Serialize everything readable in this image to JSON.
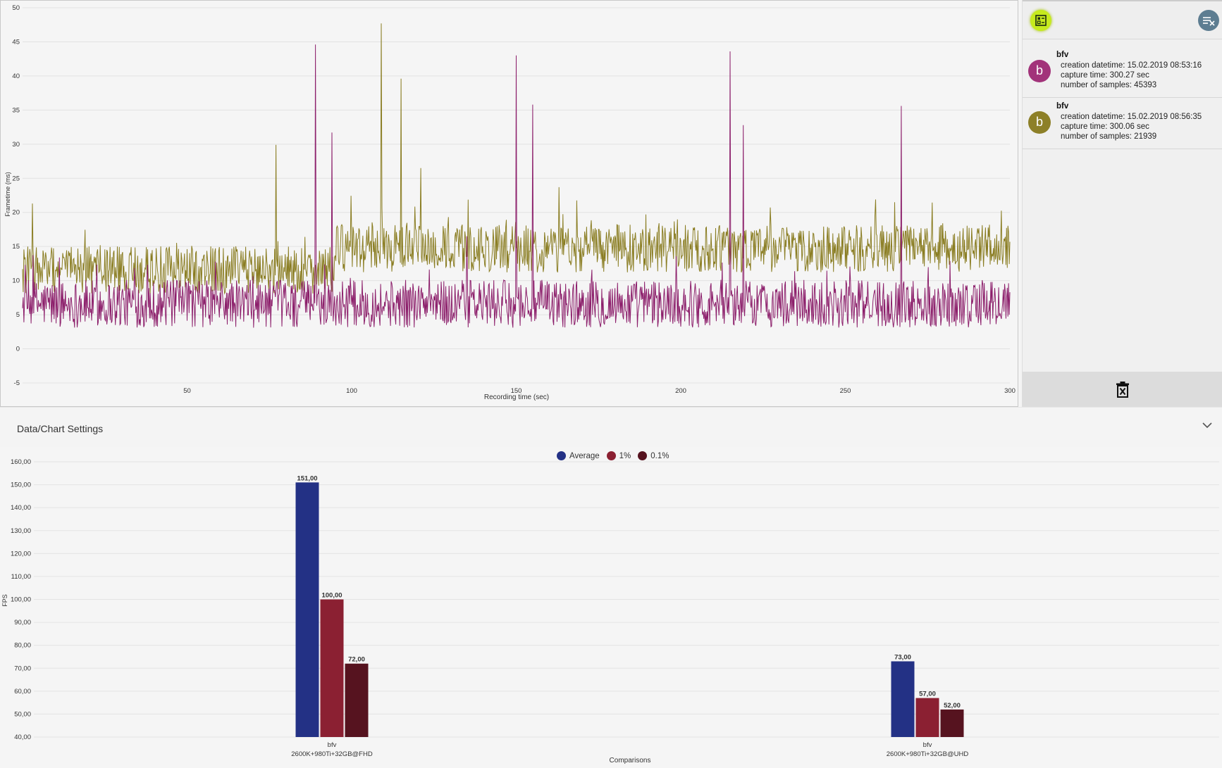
{
  "frametime_chart": {
    "xlabel": "Recording time (sec)",
    "ylabel": "Frametime (ms)",
    "x_ticks": [
      "50",
      "100",
      "150",
      "200",
      "250",
      "300"
    ],
    "y_ticks": [
      "50",
      "45",
      "40",
      "35",
      "30",
      "25",
      "20",
      "15",
      "10",
      "5",
      "0",
      "-5"
    ]
  },
  "records": [
    {
      "initial": "b",
      "name": "bfv",
      "created": "creation datetime: 15.02.2019 08:53:16",
      "capture": "capture time: 300.27 sec",
      "samples": "number of samples: 45393",
      "color": "#a0326f"
    },
    {
      "initial": "b",
      "name": "bfv",
      "created": "creation datetime: 15.02.2019 08:56:35",
      "capture": "capture time: 300.06 sec",
      "samples": "number of samples: 21939",
      "color": "#877a1a"
    }
  ],
  "settings": {
    "title": "Data/Chart Settings"
  },
  "legend": [
    {
      "label": "Average",
      "color": "#233185"
    },
    {
      "label": "1%",
      "color": "#8b2032"
    },
    {
      "label": "0.1%",
      "color": "#56131f"
    }
  ],
  "chart_data": [
    {
      "type": "line",
      "title": "",
      "xlabel": "Recording time (sec)",
      "ylabel": "Frametime (ms)",
      "xlim": [
        0,
        300
      ],
      "ylim": [
        -5,
        50
      ],
      "series": [
        {
          "name": "bfv (2600K+980Ti+32GB@FHD)",
          "color": "#8c1f6b",
          "baseline": 6.6,
          "spikes": [
            [
              89,
              44.6
            ],
            [
              94,
              31.7
            ],
            [
              135,
              16.5
            ],
            [
              150,
              43
            ],
            [
              155,
              35.8
            ],
            [
              215,
              43.6
            ],
            [
              219,
              32.8
            ],
            [
              267,
              35.6
            ]
          ]
        },
        {
          "name": "bfv (2600K+980Ti+32GB@UHD)",
          "color": "#8a7d22",
          "baseline": 13.7,
          "spikes": [
            [
              3,
              21.3
            ],
            [
              77,
              29.9
            ],
            [
              109,
              47.7
            ],
            [
              115,
              39.6
            ],
            [
              121,
              26.5
            ],
            [
              163,
              23.7
            ],
            [
              265,
              21.5
            ]
          ]
        }
      ]
    },
    {
      "type": "bar",
      "title": "",
      "xlabel": "Comparisons",
      "ylabel": "FPS",
      "ylim": [
        40,
        160
      ],
      "y_ticks": [
        "160,00",
        "150,00",
        "140,00",
        "130,00",
        "120,00",
        "110,00",
        "100,00",
        "90,00",
        "80,00",
        "70,00",
        "60,00",
        "50,00",
        "40,00"
      ],
      "categories": [
        {
          "line1": "bfv",
          "line2": "2600K+980Ti+32GB@FHD"
        },
        {
          "line1": "bfv",
          "line2": "2600K+980Ti+32GB@UHD"
        }
      ],
      "series": [
        {
          "name": "Average",
          "values": [
            151,
            73
          ],
          "labels": [
            "151,00",
            "73,00"
          ]
        },
        {
          "name": "1%",
          "values": [
            100,
            57
          ],
          "labels": [
            "100,00",
            "57,00"
          ]
        },
        {
          "name": "0.1%",
          "values": [
            72,
            52
          ],
          "labels": [
            "72,00",
            "52,00"
          ]
        }
      ]
    }
  ]
}
